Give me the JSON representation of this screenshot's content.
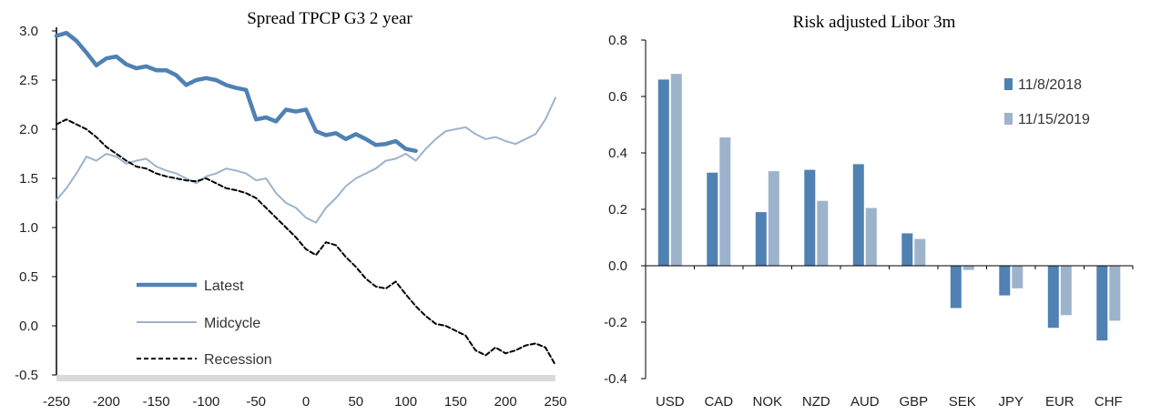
{
  "chart_data": [
    {
      "type": "line",
      "title": "Spread TPCP G3 2 year",
      "xlabel": "",
      "ylabel": "",
      "xlim": [
        -250,
        250
      ],
      "ylim": [
        -0.5,
        3.0
      ],
      "x_ticks": [
        "-250",
        "-200",
        "-150",
        "-100",
        "-50",
        "0",
        "50",
        "100",
        "150",
        "200",
        "250"
      ],
      "y_ticks": [
        "3.0",
        "2.5",
        "2.0",
        "1.5",
        "1.0",
        "0.5",
        "0.0",
        "-0.5"
      ],
      "legend_position": "bottom-left",
      "series": [
        {
          "name": "Latest",
          "color": "#4f81b3",
          "style": "thick-solid",
          "x": [
            -250,
            -240,
            -230,
            -220,
            -210,
            -200,
            -190,
            -180,
            -170,
            -160,
            -150,
            -140,
            -130,
            -120,
            -110,
            -100,
            -90,
            -80,
            -70,
            -60,
            -50,
            -40,
            -30,
            -20,
            -10,
            0,
            10,
            20,
            30,
            40,
            50,
            60,
            70,
            80,
            90,
            100,
            110
          ],
          "y": [
            2.95,
            2.98,
            2.9,
            2.78,
            2.65,
            2.72,
            2.74,
            2.66,
            2.62,
            2.64,
            2.6,
            2.6,
            2.55,
            2.45,
            2.5,
            2.52,
            2.5,
            2.45,
            2.42,
            2.4,
            2.1,
            2.12,
            2.08,
            2.2,
            2.18,
            2.2,
            1.98,
            1.94,
            1.96,
            1.9,
            1.95,
            1.9,
            1.84,
            1.85,
            1.88,
            1.8,
            1.78
          ]
        },
        {
          "name": "Midcycle",
          "color": "#9db3cc",
          "style": "thin-solid",
          "x": [
            -250,
            -240,
            -230,
            -220,
            -210,
            -200,
            -190,
            -180,
            -170,
            -160,
            -150,
            -140,
            -130,
            -120,
            -110,
            -100,
            -90,
            -80,
            -70,
            -60,
            -50,
            -40,
            -30,
            -20,
            -10,
            0,
            10,
            20,
            30,
            40,
            50,
            60,
            70,
            80,
            90,
            100,
            110,
            120,
            130,
            140,
            150,
            160,
            170,
            180,
            190,
            200,
            210,
            220,
            230,
            240,
            250
          ],
          "y": [
            1.28,
            1.4,
            1.55,
            1.72,
            1.68,
            1.75,
            1.72,
            1.65,
            1.68,
            1.7,
            1.62,
            1.58,
            1.55,
            1.5,
            1.45,
            1.52,
            1.55,
            1.6,
            1.58,
            1.55,
            1.48,
            1.5,
            1.35,
            1.25,
            1.2,
            1.1,
            1.05,
            1.2,
            1.3,
            1.42,
            1.5,
            1.55,
            1.6,
            1.68,
            1.7,
            1.75,
            1.68,
            1.8,
            1.9,
            1.98,
            2.0,
            2.02,
            1.95,
            1.9,
            1.92,
            1.88,
            1.85,
            1.9,
            1.95,
            2.1,
            2.32
          ]
        },
        {
          "name": "Recession",
          "color": "#000000",
          "style": "dashed",
          "x": [
            -250,
            -240,
            -230,
            -220,
            -210,
            -200,
            -190,
            -180,
            -170,
            -160,
            -150,
            -140,
            -130,
            -120,
            -110,
            -100,
            -90,
            -80,
            -70,
            -60,
            -50,
            -40,
            -30,
            -20,
            -10,
            0,
            10,
            20,
            30,
            40,
            50,
            60,
            70,
            80,
            90,
            100,
            110,
            120,
            130,
            140,
            150,
            160,
            170,
            180,
            190,
            200,
            210,
            220,
            230,
            240,
            250
          ],
          "y": [
            2.05,
            2.1,
            2.05,
            2.0,
            1.92,
            1.82,
            1.75,
            1.68,
            1.62,
            1.6,
            1.55,
            1.52,
            1.5,
            1.48,
            1.47,
            1.5,
            1.45,
            1.4,
            1.38,
            1.35,
            1.3,
            1.2,
            1.1,
            1.0,
            0.9,
            0.78,
            0.72,
            0.85,
            0.82,
            0.7,
            0.6,
            0.48,
            0.4,
            0.38,
            0.45,
            0.32,
            0.2,
            0.1,
            0.02,
            0.0,
            -0.05,
            -0.1,
            -0.25,
            -0.3,
            -0.22,
            -0.28,
            -0.25,
            -0.2,
            -0.18,
            -0.22,
            -0.4
          ]
        }
      ]
    },
    {
      "type": "bar",
      "title": "Risk adjusted Libor 3m",
      "xlabel": "",
      "ylabel": "",
      "ylim": [
        -0.4,
        0.8
      ],
      "y_ticks": [
        "0.8",
        "0.6",
        "0.4",
        "0.2",
        "0.0",
        "-0.2",
        "-0.4"
      ],
      "legend_position": "top-right",
      "categories": [
        "USD",
        "CAD",
        "NOK",
        "NZD",
        "AUD",
        "GBP",
        "SEK",
        "JPY",
        "EUR",
        "CHF"
      ],
      "series": [
        {
          "name": "11/8/2018",
          "color": "#4f81b3",
          "values": [
            0.66,
            0.33,
            0.19,
            0.34,
            0.36,
            0.115,
            -0.15,
            -0.105,
            -0.22,
            -0.265
          ]
        },
        {
          "name": "11/15/2019",
          "color": "#9db3cc",
          "values": [
            0.68,
            0.455,
            0.335,
            0.23,
            0.205,
            0.095,
            -0.015,
            -0.08,
            -0.175,
            -0.195
          ]
        }
      ]
    }
  ]
}
